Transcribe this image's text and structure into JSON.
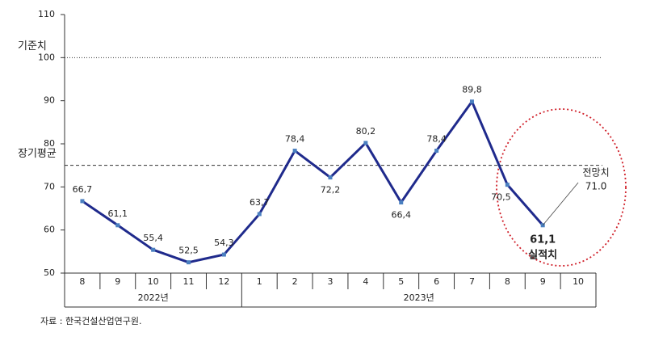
{
  "chart_data": {
    "type": "line",
    "categories": [
      "8",
      "9",
      "10",
      "11",
      "12",
      "1",
      "2",
      "3",
      "4",
      "5",
      "6",
      "7",
      "8",
      "9",
      "10"
    ],
    "groups": [
      "2022년",
      "2023년"
    ],
    "series": [
      {
        "color": "#1f2a8c",
        "values": [
          66.7,
          61.1,
          55.4,
          52.5,
          54.3,
          63.7,
          78.4,
          72.2,
          80.2,
          66.4,
          78.4,
          89.8,
          70.5,
          61.1,
          null
        ],
        "value_labels": [
          "66,7",
          "61,1",
          "55,4",
          "52,5",
          "54,3",
          "63,7",
          "78,4",
          "72,2",
          "80,2",
          "66,4",
          "78,4",
          "89,8",
          "70,5",
          "61,1",
          null
        ]
      }
    ],
    "actual_label": "실적치",
    "forecast": {
      "label": "전망치",
      "value": 71.0,
      "value_label": "71.0"
    },
    "reference_lines": [
      {
        "label": "기준치",
        "value": 100,
        "style": "dotted"
      },
      {
        "label": "장기평균",
        "value": 75,
        "style": "dashed"
      }
    ],
    "ylim": [
      50,
      110
    ],
    "yticks": [
      50,
      60,
      70,
      80,
      90,
      100,
      110
    ],
    "source": "자료 : 한국건설산업연구원."
  }
}
